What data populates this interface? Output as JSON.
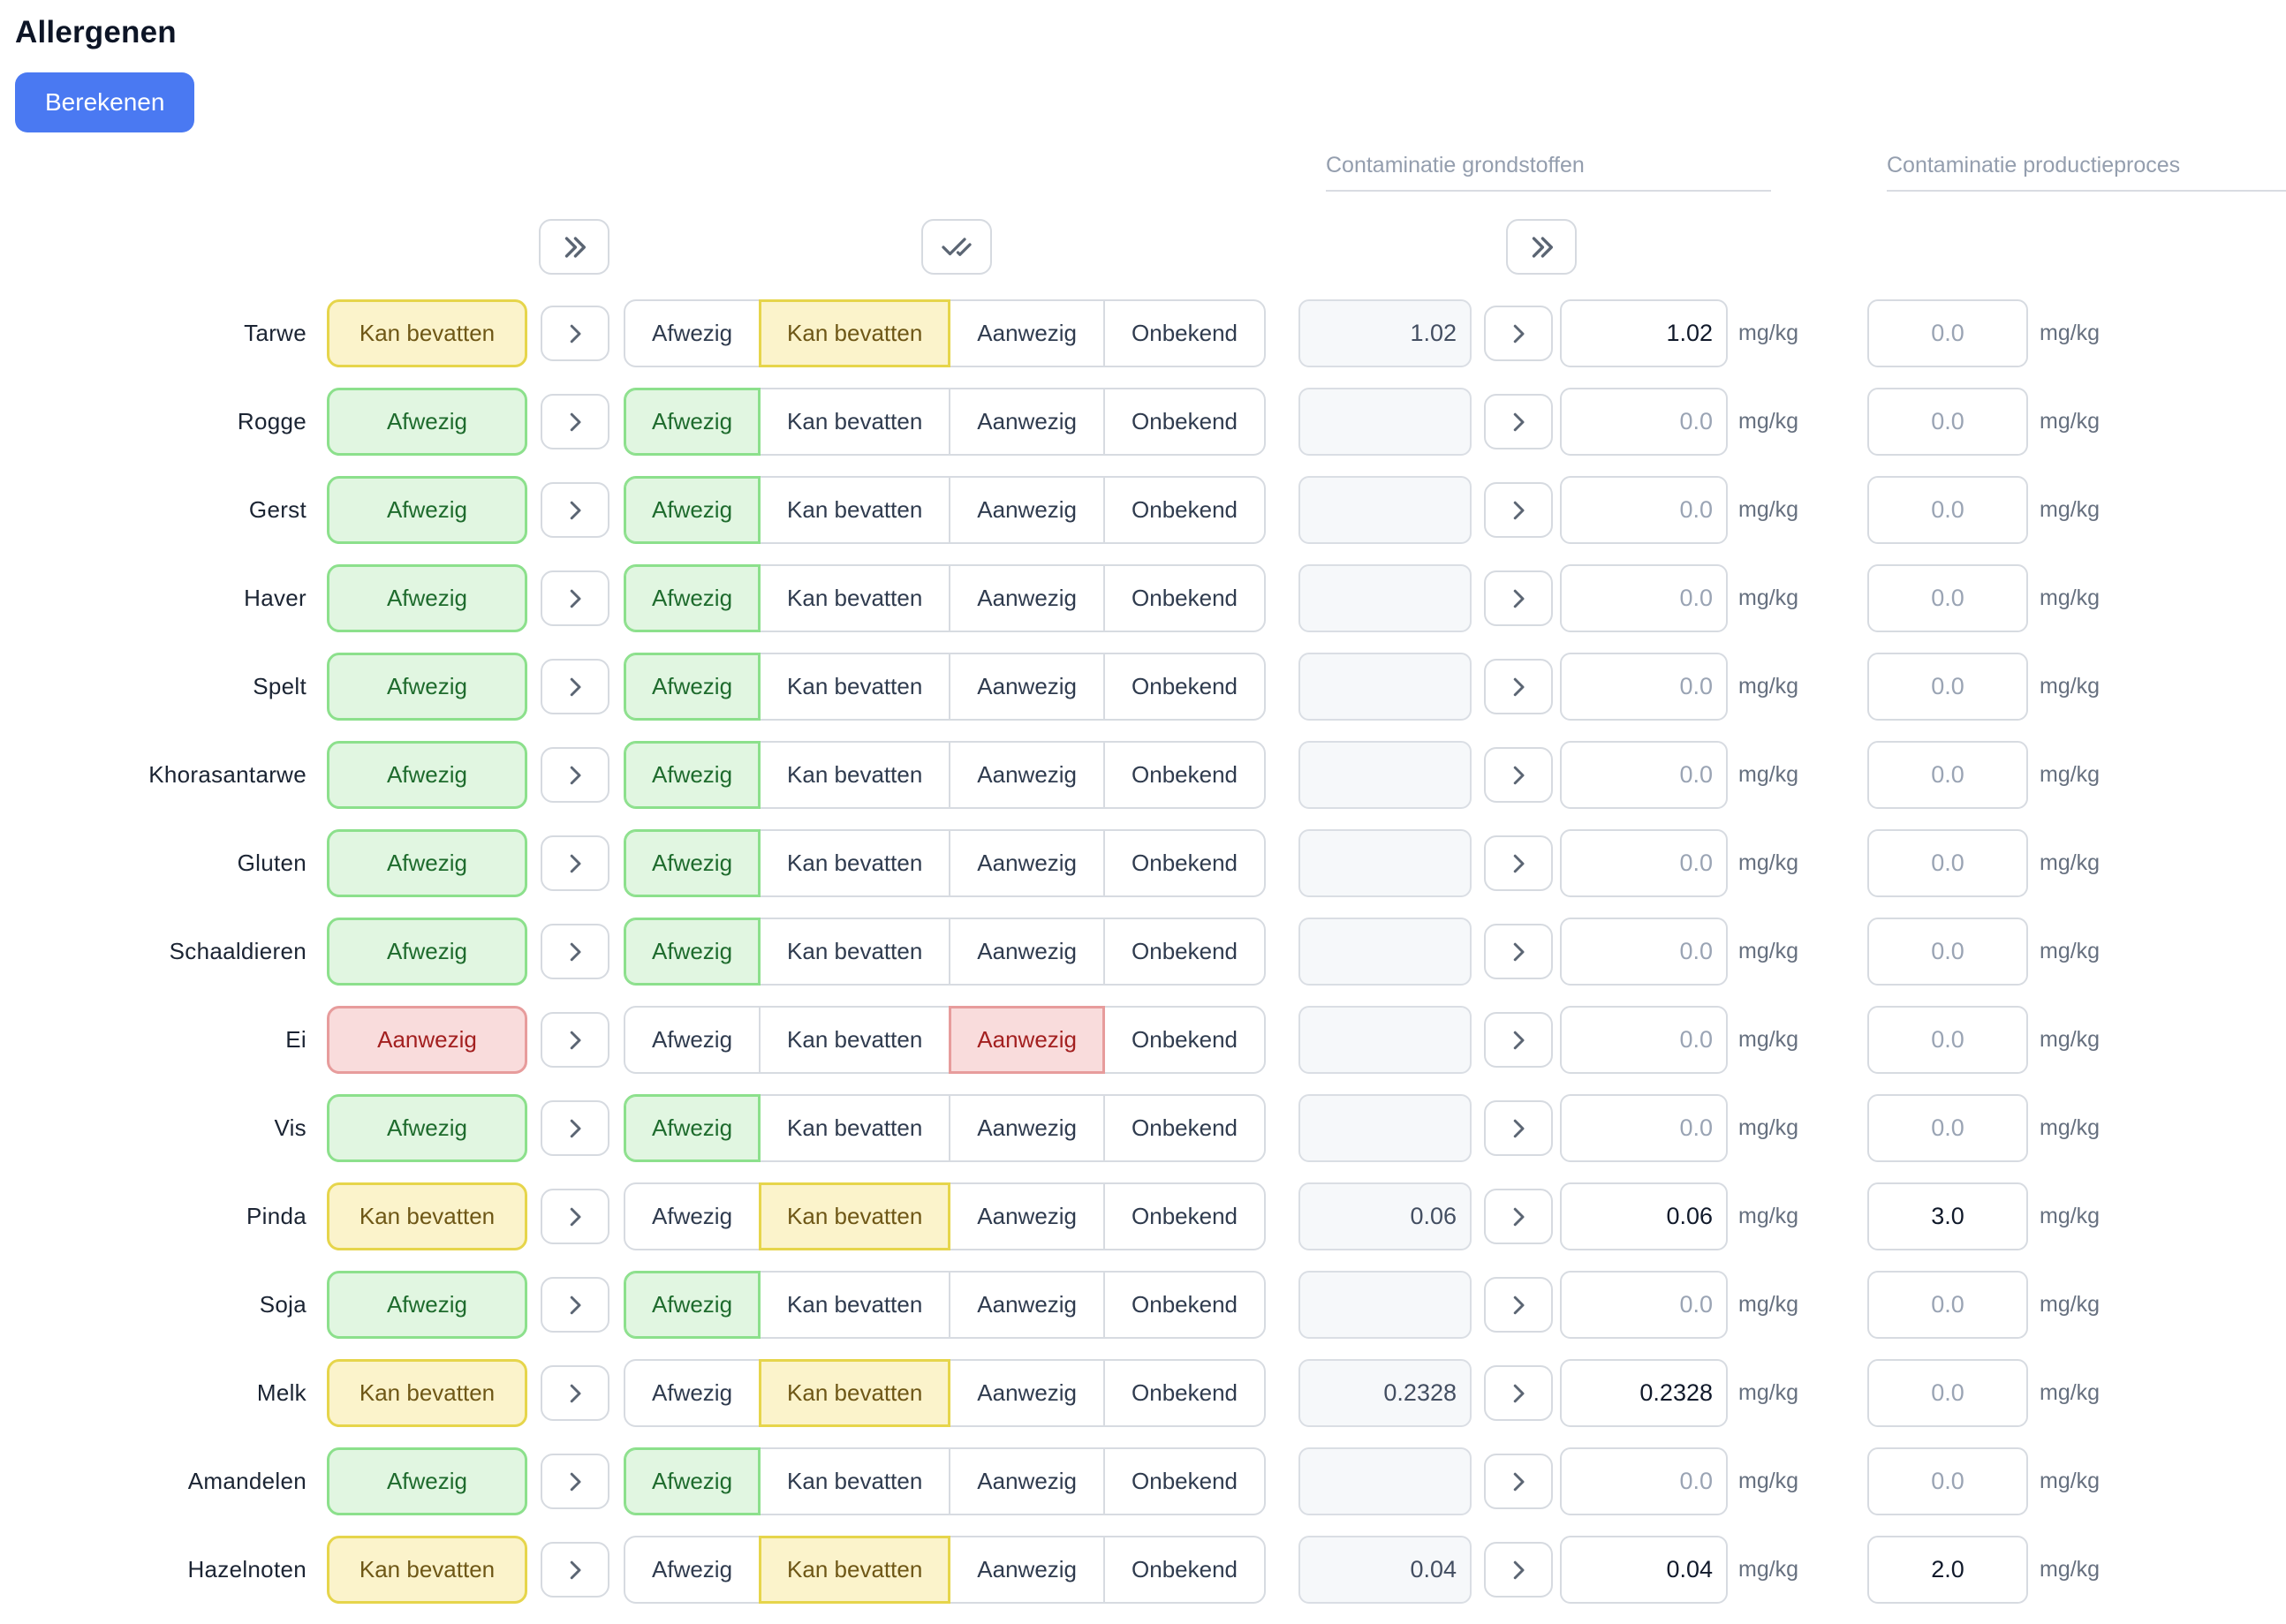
{
  "page": {
    "title": "Allergenen",
    "calculate_label": "Berekenen"
  },
  "columns": {
    "raw_materials_header": "Contaminatie grondstoffen",
    "production_header": "Contaminatie productieproces",
    "unit": "mg/kg"
  },
  "controls": {
    "apply_all_statuses_icon": "chevrons-right-icon",
    "confirm_all_statuses_icon": "check-double-icon",
    "apply_all_raw_values_icon": "chevrons-right-icon",
    "apply_row_icon": "chevron-right-icon"
  },
  "statuses": [
    "Afwezig",
    "Kan bevatten",
    "Aanwezig",
    "Onbekend"
  ],
  "status_colors": {
    "Afwezig": {
      "bg": "#e1f6e1",
      "border": "#8ce08c",
      "text": "#1e6b2d"
    },
    "Kan bevatten": {
      "bg": "#fbf3cb",
      "border": "#e6d54b",
      "text": "#6e5716"
    },
    "Aanwezig": {
      "bg": "#f9dcdc",
      "border": "#e79c9c",
      "text": "#a32020"
    },
    "Onbekend": {
      "bg": "#ffffff",
      "border": "#d6dae0",
      "text": "#2f3b4e"
    }
  },
  "placeholders": {
    "raw_input": "0.0",
    "production_input": "0.0"
  },
  "accent": "#4a79f2",
  "rows": [
    {
      "label": "Tarwe",
      "status": "Kan bevatten",
      "raw_calculated": "1.02",
      "raw_input": "1.02",
      "production_input": ""
    },
    {
      "label": "Rogge",
      "status": "Afwezig",
      "raw_calculated": "",
      "raw_input": "",
      "production_input": ""
    },
    {
      "label": "Gerst",
      "status": "Afwezig",
      "raw_calculated": "",
      "raw_input": "",
      "production_input": ""
    },
    {
      "label": "Haver",
      "status": "Afwezig",
      "raw_calculated": "",
      "raw_input": "",
      "production_input": ""
    },
    {
      "label": "Spelt",
      "status": "Afwezig",
      "raw_calculated": "",
      "raw_input": "",
      "production_input": ""
    },
    {
      "label": "Khorasantarwe",
      "status": "Afwezig",
      "raw_calculated": "",
      "raw_input": "",
      "production_input": ""
    },
    {
      "label": "Gluten",
      "status": "Afwezig",
      "raw_calculated": "",
      "raw_input": "",
      "production_input": ""
    },
    {
      "label": "Schaaldieren",
      "status": "Afwezig",
      "raw_calculated": "",
      "raw_input": "",
      "production_input": ""
    },
    {
      "label": "Ei",
      "status": "Aanwezig",
      "raw_calculated": "",
      "raw_input": "",
      "production_input": ""
    },
    {
      "label": "Vis",
      "status": "Afwezig",
      "raw_calculated": "",
      "raw_input": "",
      "production_input": ""
    },
    {
      "label": "Pinda",
      "status": "Kan bevatten",
      "raw_calculated": "0.06",
      "raw_input": "0.06",
      "production_input": "3.0"
    },
    {
      "label": "Soja",
      "status": "Afwezig",
      "raw_calculated": "",
      "raw_input": "",
      "production_input": ""
    },
    {
      "label": "Melk",
      "status": "Kan bevatten",
      "raw_calculated": "0.2328",
      "raw_input": "0.2328",
      "production_input": ""
    },
    {
      "label": "Amandelen",
      "status": "Afwezig",
      "raw_calculated": "",
      "raw_input": "",
      "production_input": ""
    },
    {
      "label": "Hazelnoten",
      "status": "Kan bevatten",
      "raw_calculated": "0.04",
      "raw_input": "0.04",
      "production_input": "2.0"
    }
  ]
}
